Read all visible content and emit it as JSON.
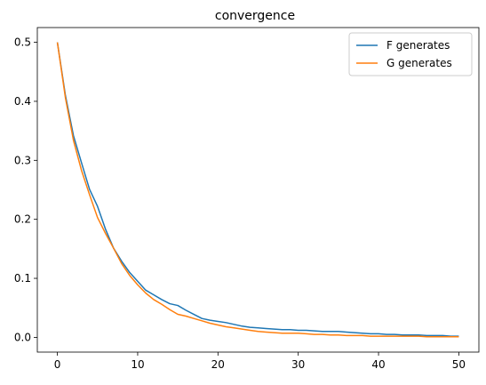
{
  "chart_data": {
    "type": "line",
    "title": "convergence",
    "xlabel": "",
    "ylabel": "",
    "xlim": [
      -2.5,
      52.5
    ],
    "ylim": [
      -0.025,
      0.525
    ],
    "xticks": [
      0,
      10,
      20,
      30,
      40,
      50
    ],
    "yticks": [
      0.0,
      0.1,
      0.2,
      0.3,
      0.4,
      0.5
    ],
    "ytick_labels": [
      "0.0",
      "0.1",
      "0.2",
      "0.3",
      "0.4",
      "0.5"
    ],
    "grid": false,
    "legend_position": "top-right",
    "x": [
      0,
      1,
      2,
      3,
      4,
      5,
      6,
      7,
      8,
      9,
      10,
      11,
      12,
      13,
      14,
      15,
      16,
      17,
      18,
      19,
      20,
      21,
      22,
      23,
      24,
      25,
      26,
      27,
      28,
      29,
      30,
      31,
      32,
      33,
      34,
      35,
      36,
      37,
      38,
      39,
      40,
      41,
      42,
      43,
      44,
      45,
      46,
      47,
      48,
      49,
      50
    ],
    "series": [
      {
        "name": "F generates",
        "color": "#1f77b4",
        "values": [
          0.5,
          0.41,
          0.342,
          0.296,
          0.251,
          0.222,
          0.183,
          0.151,
          0.129,
          0.11,
          0.095,
          0.08,
          0.072,
          0.064,
          0.057,
          0.054,
          0.046,
          0.039,
          0.032,
          0.029,
          0.027,
          0.025,
          0.022,
          0.019,
          0.017,
          0.016,
          0.015,
          0.014,
          0.013,
          0.013,
          0.012,
          0.012,
          0.011,
          0.01,
          0.01,
          0.01,
          0.009,
          0.008,
          0.007,
          0.006,
          0.006,
          0.005,
          0.005,
          0.004,
          0.004,
          0.004,
          0.003,
          0.003,
          0.003,
          0.002,
          0.002
        ]
      },
      {
        "name": "G generates",
        "color": "#ff7f0e",
        "values": [
          0.5,
          0.406,
          0.334,
          0.283,
          0.242,
          0.203,
          0.176,
          0.151,
          0.125,
          0.105,
          0.089,
          0.075,
          0.064,
          0.056,
          0.047,
          0.039,
          0.036,
          0.032,
          0.028,
          0.024,
          0.021,
          0.018,
          0.016,
          0.014,
          0.012,
          0.01,
          0.009,
          0.008,
          0.007,
          0.007,
          0.007,
          0.006,
          0.005,
          0.005,
          0.004,
          0.004,
          0.003,
          0.003,
          0.003,
          0.002,
          0.002,
          0.002,
          0.002,
          0.002,
          0.002,
          0.002,
          0.001,
          0.001,
          0.001,
          0.001,
          0.001
        ]
      }
    ]
  }
}
